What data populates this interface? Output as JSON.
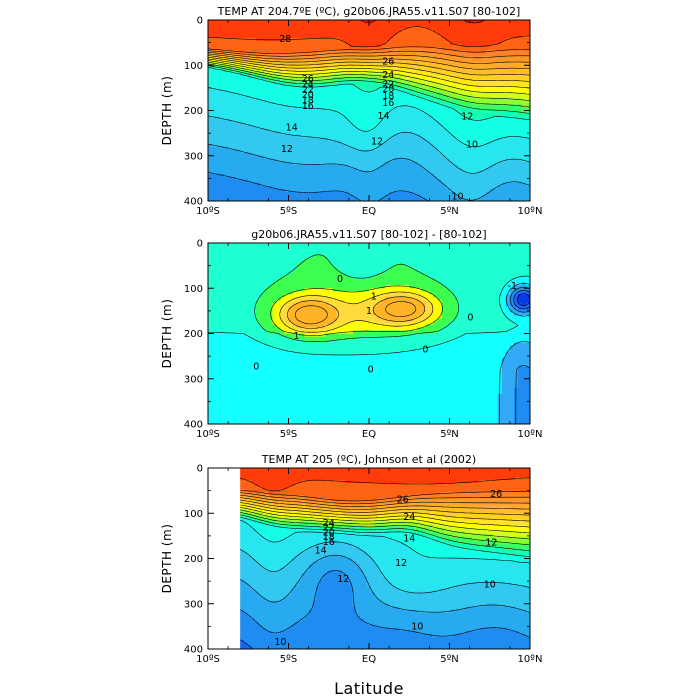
{
  "chart_data": [
    {
      "type": "contour",
      "title": "TEMP AT 204.7ºE (ºC), g20b06.JRA55.v11.S07 [80-102]",
      "ylabel": "DEPTH (m)",
      "xlabel": "",
      "xlim": [
        "10ºS",
        "10ºN"
      ],
      "ylim": [
        400,
        0
      ],
      "x_ticks": [
        "10ºS",
        "5ºS",
        "EQ",
        "5ºN",
        "10ºN"
      ],
      "y_ticks": [
        "0",
        "100",
        "200",
        "300",
        "400"
      ],
      "contour_interval": 1,
      "contour_labels": [
        {
          "text": "28",
          "lat": -5.2,
          "depth": 42
        },
        {
          "text": "26",
          "lat": -3.8,
          "depth": 130
        },
        {
          "text": "24",
          "lat": -3.8,
          "depth": 142
        },
        {
          "text": "22",
          "lat": -3.8,
          "depth": 155
        },
        {
          "text": "20",
          "lat": -3.8,
          "depth": 166
        },
        {
          "text": "18",
          "lat": -3.8,
          "depth": 178
        },
        {
          "text": "16",
          "lat": -3.8,
          "depth": 190
        },
        {
          "text": "14",
          "lat": -4.8,
          "depth": 238
        },
        {
          "text": "12",
          "lat": -5.1,
          "depth": 285
        },
        {
          "text": "12",
          "lat": 0.5,
          "depth": 268
        },
        {
          "text": "14",
          "lat": 0.9,
          "depth": 212
        },
        {
          "text": "16",
          "lat": 1.2,
          "depth": 183
        },
        {
          "text": "26",
          "lat": 1.2,
          "depth": 92
        },
        {
          "text": "24",
          "lat": 1.2,
          "depth": 122
        },
        {
          "text": "22",
          "lat": 1.2,
          "depth": 143
        },
        {
          "text": "20",
          "lat": 1.2,
          "depth": 153
        },
        {
          "text": "18",
          "lat": 1.2,
          "depth": 168
        },
        {
          "text": "12",
          "lat": 6.1,
          "depth": 213
        },
        {
          "text": "10",
          "lat": 6.4,
          "depth": 275
        },
        {
          "text": "10",
          "lat": 5.5,
          "depth": 390
        }
      ],
      "max_temp_top": 29.0,
      "min_temp_bottom": 9.0
    },
    {
      "type": "contour",
      "title": "g20b06.JRA55.v11.S07 [80-102]  -  [80-102]",
      "ylabel": "DEPTH (m)",
      "xlabel": "",
      "xlim": [
        "10ºS",
        "10ºN"
      ],
      "ylim": [
        400,
        0
      ],
      "x_ticks": [
        "10ºS",
        "5ºS",
        "EQ",
        "5ºN",
        "10ºN"
      ],
      "y_ticks": [
        "0",
        "100",
        "200",
        "300",
        "400"
      ],
      "contour_interval": 0.5,
      "contour_labels": [
        {
          "text": "0",
          "lat": -1.8,
          "depth": 80
        },
        {
          "text": "1",
          "lat": 0.3,
          "depth": 118
        },
        {
          "text": "1",
          "lat": 0.0,
          "depth": 150
        },
        {
          "text": "1",
          "lat": -4.5,
          "depth": 205
        },
        {
          "text": "0",
          "lat": -7.0,
          "depth": 273
        },
        {
          "text": "0",
          "lat": 0.1,
          "depth": 280
        },
        {
          "text": "0",
          "lat": 3.5,
          "depth": 235
        },
        {
          "text": "0",
          "lat": 6.3,
          "depth": 165
        },
        {
          "text": "-1",
          "lat": 8.9,
          "depth": 95
        }
      ],
      "positive_max": 2.5,
      "negative_min": -2.5
    },
    {
      "type": "contour",
      "title": "TEMP AT 205 (ºC), Johnson et al (2002)",
      "ylabel": "DEPTH (m)",
      "xlabel": "Latitude",
      "xlim": [
        "10ºS",
        "10ºN"
      ],
      "ylim": [
        400,
        0
      ],
      "x_ticks": [
        "10ºS",
        "5ºS",
        "EQ",
        "5ºN",
        "10ºN"
      ],
      "y_ticks": [
        "0",
        "100",
        "200",
        "300",
        "400"
      ],
      "data_start_lat": -8,
      "contour_interval": 1,
      "contour_labels": [
        {
          "text": "26",
          "lat": 2.1,
          "depth": 70
        },
        {
          "text": "26",
          "lat": 7.9,
          "depth": 58
        },
        {
          "text": "24",
          "lat": -2.5,
          "depth": 122
        },
        {
          "text": "22",
          "lat": -2.5,
          "depth": 132
        },
        {
          "text": "20",
          "lat": -2.5,
          "depth": 143
        },
        {
          "text": "18",
          "lat": -2.5,
          "depth": 153
        },
        {
          "text": "16",
          "lat": -2.5,
          "depth": 163
        },
        {
          "text": "14",
          "lat": -3.0,
          "depth": 182
        },
        {
          "text": "24",
          "lat": 2.5,
          "depth": 108
        },
        {
          "text": "14",
          "lat": 2.5,
          "depth": 156
        },
        {
          "text": "12",
          "lat": 2.0,
          "depth": 210
        },
        {
          "text": "12",
          "lat": -1.6,
          "depth": 245
        },
        {
          "text": "12",
          "lat": 7.6,
          "depth": 165
        },
        {
          "text": "10",
          "lat": 7.5,
          "depth": 258
        },
        {
          "text": "10",
          "lat": 3.0,
          "depth": 350
        },
        {
          "text": "10",
          "lat": -5.5,
          "depth": 385
        }
      ],
      "max_temp_top": 29.0,
      "min_temp_bottom": 9.0
    }
  ]
}
